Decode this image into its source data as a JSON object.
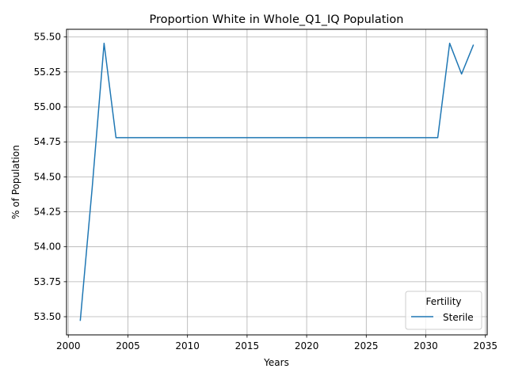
{
  "chart_data": {
    "type": "line",
    "title": "Proportion White in Whole_Q1_IQ Population",
    "xlabel": "Years",
    "ylabel": "% of Population",
    "xlim": [
      1999.85,
      2035.15
    ],
    "ylim": [
      53.37,
      55.555
    ],
    "x_ticks": [
      2000,
      2005,
      2010,
      2015,
      2020,
      2025,
      2030,
      2035
    ],
    "x_tick_labels": [
      "2000",
      "2005",
      "2010",
      "2015",
      "2020",
      "2025",
      "2030",
      "2035"
    ],
    "y_ticks": [
      53.5,
      53.75,
      54.0,
      54.25,
      54.5,
      54.75,
      55.0,
      55.25,
      55.5
    ],
    "y_tick_labels": [
      "53.50",
      "53.75",
      "54.00",
      "54.25",
      "54.50",
      "54.75",
      "55.00",
      "55.25",
      "55.50"
    ],
    "grid": true,
    "legend": {
      "title": "Fertility",
      "placement": "lower-right"
    },
    "series": [
      {
        "name": "Sterile",
        "color": "#1f77b4",
        "x": [
          2001,
          2002,
          2003,
          2004,
          2005,
          2006,
          2007,
          2008,
          2009,
          2010,
          2011,
          2012,
          2013,
          2014,
          2015,
          2016,
          2017,
          2018,
          2019,
          2020,
          2021,
          2022,
          2023,
          2024,
          2025,
          2026,
          2027,
          2028,
          2029,
          2030,
          2031,
          2032,
          2033,
          2034
        ],
        "y": [
          53.47,
          54.42,
          55.455,
          54.78,
          54.78,
          54.78,
          54.78,
          54.78,
          54.78,
          54.78,
          54.78,
          54.78,
          54.78,
          54.78,
          54.78,
          54.78,
          54.78,
          54.78,
          54.78,
          54.78,
          54.78,
          54.78,
          54.78,
          54.78,
          54.78,
          54.78,
          54.78,
          54.78,
          54.78,
          54.78,
          54.78,
          55.455,
          55.235,
          55.445
        ]
      }
    ]
  }
}
